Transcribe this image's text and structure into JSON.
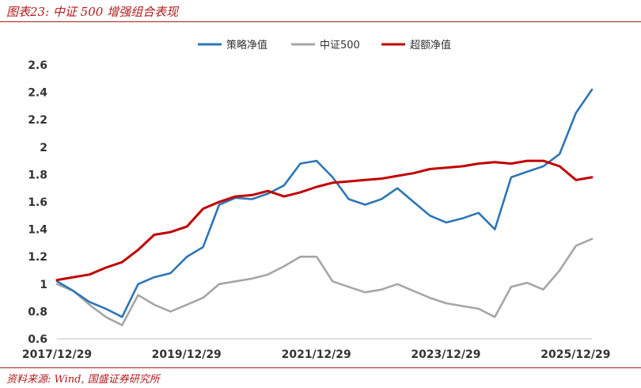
{
  "figure": {
    "title": "图表23:  中证 500 增强组合表现",
    "source": "资料来源:  Wind,  国盛证券研究所"
  },
  "chart_data": {
    "type": "line",
    "title": "",
    "xlabel": "",
    "ylabel": "",
    "ylim": [
      0.6,
      2.6
    ],
    "yticks": [
      "0.6",
      "0.8",
      "1",
      "1.2",
      "1.4",
      "1.6",
      "1.8",
      "2",
      "2.2",
      "2.4",
      "2.6"
    ],
    "xlim": [
      "2017-12-29",
      "2026-03-31"
    ],
    "xticks": [
      "2017/12/29",
      "2019/12/29",
      "2021/12/29",
      "2023/12/29",
      "2025/12/29"
    ],
    "grid": false,
    "legend_position": "top",
    "x": [
      "2017-12-29",
      "2018-03-31",
      "2018-06-30",
      "2018-09-30",
      "2018-12-31",
      "2019-03-31",
      "2019-06-30",
      "2019-09-30",
      "2019-12-31",
      "2020-03-31",
      "2020-06-30",
      "2020-09-30",
      "2020-12-31",
      "2021-03-31",
      "2021-06-30",
      "2021-09-30",
      "2021-12-31",
      "2022-03-31",
      "2022-06-30",
      "2022-09-30",
      "2022-12-31",
      "2023-03-31",
      "2023-06-30",
      "2023-09-30",
      "2023-12-31",
      "2024-03-31",
      "2024-06-30",
      "2024-09-30",
      "2024-12-31",
      "2025-03-31",
      "2025-06-30",
      "2025-09-30",
      "2025-12-31",
      "2026-03-31"
    ],
    "series": [
      {
        "name": "策略净值",
        "color": "#2e75b6",
        "values": [
          1.02,
          0.95,
          0.87,
          0.82,
          0.76,
          1.0,
          1.05,
          1.08,
          1.2,
          1.27,
          1.58,
          1.63,
          1.62,
          1.66,
          1.72,
          1.88,
          1.9,
          1.78,
          1.62,
          1.58,
          1.62,
          1.7,
          1.6,
          1.5,
          1.45,
          1.48,
          1.52,
          1.4,
          1.78,
          1.82,
          1.86,
          1.95,
          2.25,
          2.42
        ]
      },
      {
        "name": "中证500",
        "color": "#a6a6a6",
        "values": [
          1.0,
          0.95,
          0.85,
          0.76,
          0.7,
          0.92,
          0.85,
          0.8,
          0.85,
          0.9,
          1.0,
          1.02,
          1.04,
          1.07,
          1.13,
          1.2,
          1.2,
          1.02,
          0.98,
          0.94,
          0.96,
          1.0,
          0.95,
          0.9,
          0.86,
          0.84,
          0.82,
          0.76,
          0.98,
          1.01,
          0.96,
          1.1,
          1.28,
          1.33
        ]
      },
      {
        "name": "超额净值",
        "color": "#c00000",
        "values": [
          1.03,
          1.05,
          1.07,
          1.12,
          1.16,
          1.25,
          1.36,
          1.38,
          1.42,
          1.55,
          1.6,
          1.64,
          1.65,
          1.68,
          1.64,
          1.67,
          1.71,
          1.74,
          1.75,
          1.76,
          1.77,
          1.79,
          1.81,
          1.84,
          1.85,
          1.86,
          1.88,
          1.89,
          1.88,
          1.9,
          1.9,
          1.86,
          1.76,
          1.78
        ]
      }
    ]
  }
}
